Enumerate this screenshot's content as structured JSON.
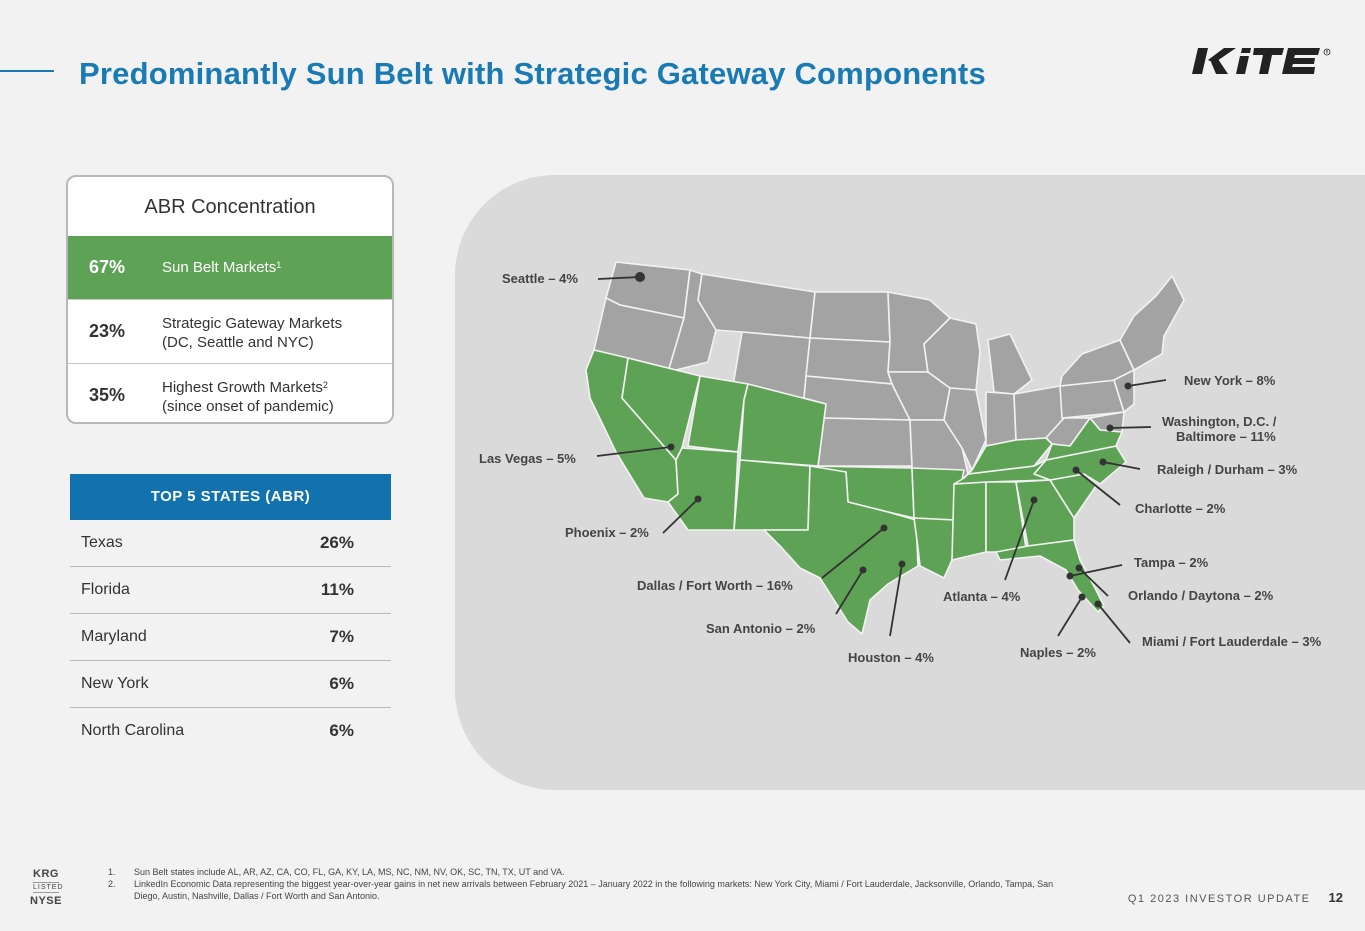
{
  "title": "Predominantly Sun Belt with Strategic Gateway Components",
  "logo_text": "KITE",
  "abr": {
    "heading": "ABR Concentration",
    "rows": [
      {
        "pct": "67%",
        "line1": "Sun Belt Markets",
        "sup": "1",
        "line2": ""
      },
      {
        "pct": "23%",
        "line1": "Strategic Gateway Markets",
        "sup": "",
        "line2": "(DC, Seattle and NYC)"
      },
      {
        "pct": "35%",
        "line1": "Highest Growth Markets",
        "sup": "2",
        "line2": "(since onset of pandemic)"
      }
    ]
  },
  "top5": {
    "heading": "TOP 5 STATES (ABR)",
    "rows": [
      {
        "state": "Texas",
        "value": "26%"
      },
      {
        "state": "Florida",
        "value": "11%"
      },
      {
        "state": "Maryland",
        "value": "7%"
      },
      {
        "state": "New York",
        "value": "6%"
      },
      {
        "state": "North Carolina",
        "value": "6%"
      }
    ]
  },
  "map": {
    "colors": {
      "sun_belt": "#5ea355",
      "other": "#a3a3a3",
      "panel": "#dadada",
      "marker": "#333333"
    },
    "markets": [
      {
        "label": "Seattle – 4%"
      },
      {
        "label": "Las Vegas – 5%"
      },
      {
        "label": "Phoenix – 2%"
      },
      {
        "label": "Dallas / Fort Worth – 16%"
      },
      {
        "label": "San Antonio – 2%"
      },
      {
        "label": "Houston – 4%"
      },
      {
        "label": "Atlanta – 4%"
      },
      {
        "label": "Naples – 2%"
      },
      {
        "label": "New York – 8%"
      },
      {
        "label": "Washington, D.C. /"
      },
      {
        "label": "Baltimore – 11%"
      },
      {
        "label": "Raleigh / Durham – 3%"
      },
      {
        "label": "Charlotte – 2%"
      },
      {
        "label": "Tampa – 2%"
      },
      {
        "label": "Orlando / Daytona – 2%"
      },
      {
        "label": "Miami / Fort Lauderdale – 3%"
      }
    ]
  },
  "footnotes": [
    {
      "num": "1.",
      "text": "Sun Belt states include AL, AR, AZ, CA, CO, FL, GA, KY, LA, MS, NC, NM, NV, OK, SC, TN, TX, UT and VA."
    },
    {
      "num": "2.",
      "text": "LinkedIn Economic Data representing the biggest year-over-year gains in net new arrivals between February 2021 – January 2022 in the following markets: New York City, Miami / Fort Lauderdale, Jacksonville, Orlando, Tampa, San Diego, Austin, Nashville, Dallas / Fort Worth and San Antonio."
    }
  ],
  "ticker": {
    "symbol": "KRG",
    "listed": "LISTED",
    "exchange": "NYSE"
  },
  "footer": {
    "label": "Q1 2023 INVESTOR UPDATE",
    "page": "12"
  }
}
